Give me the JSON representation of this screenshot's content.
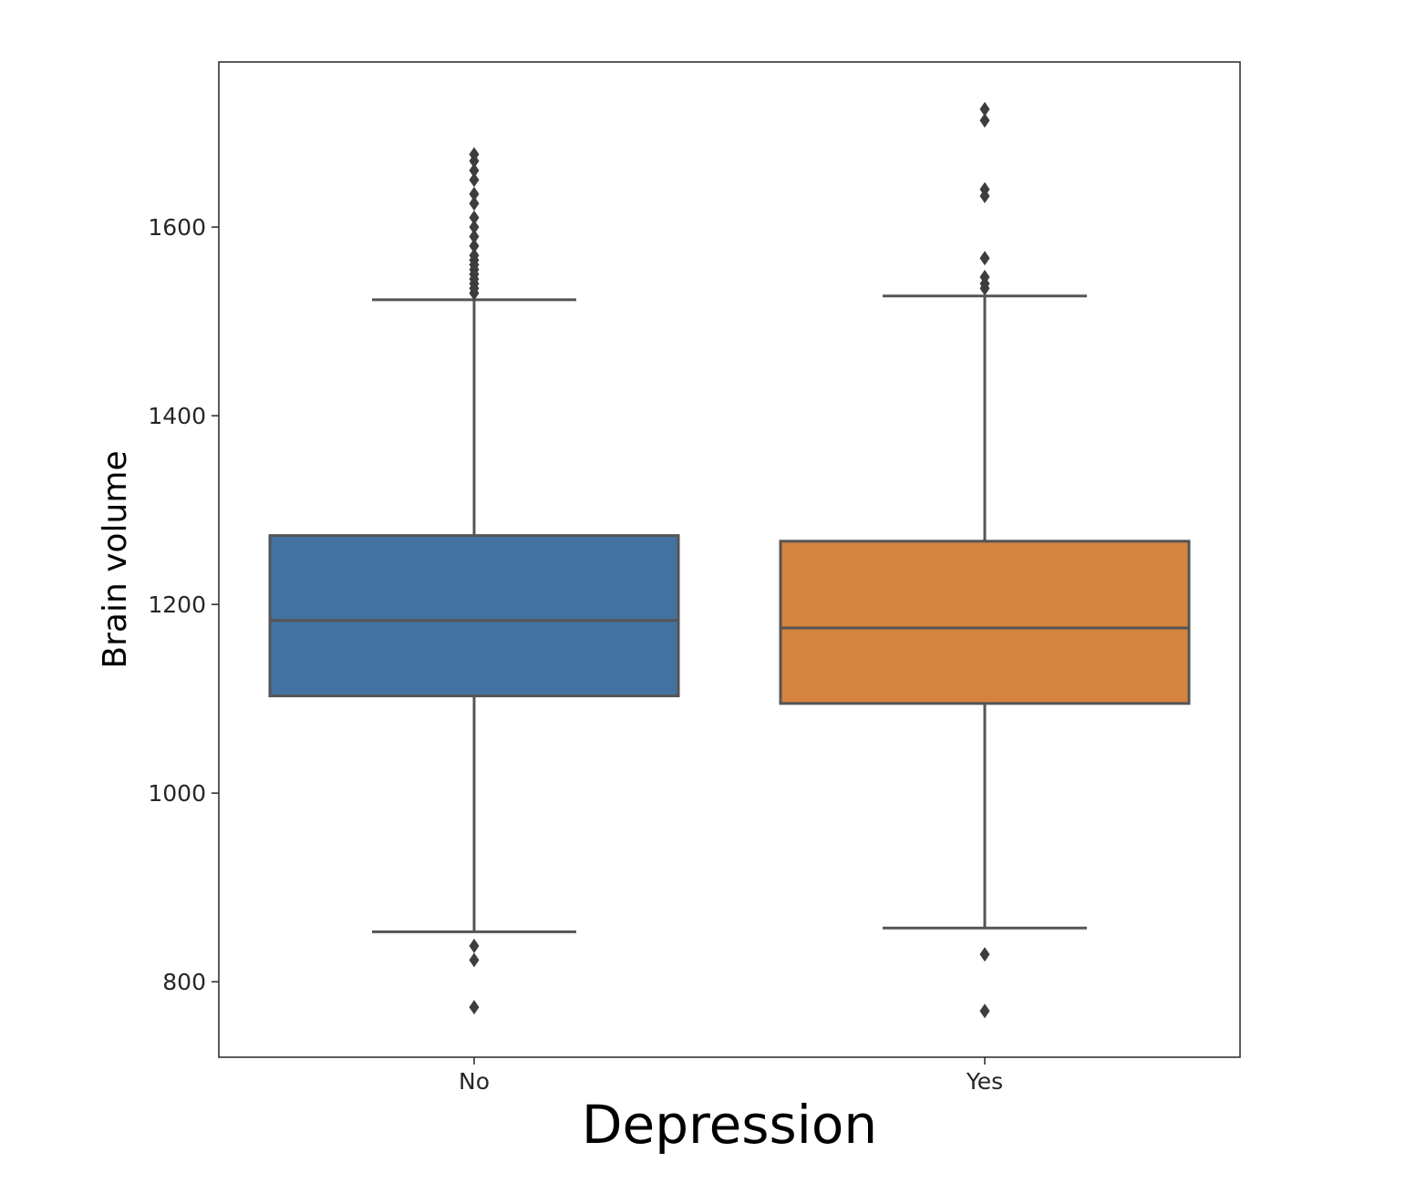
{
  "chart_data": {
    "type": "box",
    "title": "",
    "xlabel": "Depression",
    "ylabel": "Brain volume",
    "categories": [
      "No",
      "Yes"
    ],
    "ylim": [
      720,
      1775
    ],
    "yticks": [
      800,
      1000,
      1200,
      1400,
      1600
    ],
    "grid": false,
    "colors": [
      "#4472a0",
      "#d58440"
    ],
    "line_color": "#555555",
    "series": [
      {
        "name": "No",
        "whisker_low": 853,
        "q1": 1103,
        "median": 1183,
        "q3": 1273,
        "whisker_high": 1523,
        "outliers": [
          1530,
          1535,
          1540,
          1545,
          1550,
          1555,
          1560,
          1565,
          1570,
          1580,
          1590,
          1600,
          1610,
          1625,
          1635,
          1650,
          1660,
          1670,
          1677,
          838,
          823,
          773
        ]
      },
      {
        "name": "Yes",
        "whisker_low": 857,
        "q1": 1095,
        "median": 1175,
        "q3": 1267,
        "whisker_high": 1527,
        "outliers": [
          1535,
          1540,
          1547,
          1567,
          1633,
          1640,
          1713,
          1725,
          829,
          769
        ]
      }
    ]
  }
}
